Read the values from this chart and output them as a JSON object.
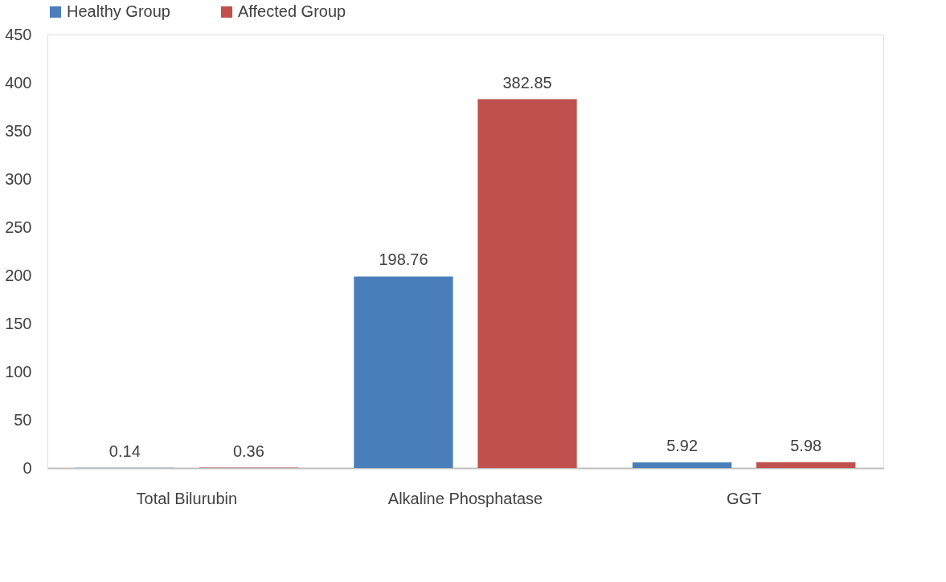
{
  "chart_data": {
    "type": "bar",
    "categories": [
      "Total Bilurubin",
      "Alkaline Phosphatase",
      "GGT"
    ],
    "series": [
      {
        "name": "Healthy Group",
        "color": "#4a7ebb",
        "values": [
          0.14,
          198.76,
          5.92
        ]
      },
      {
        "name": "Affected Group",
        "color": "#c0504d",
        "values": [
          0.36,
          382.85,
          5.98
        ]
      }
    ],
    "ylim": [
      0,
      450
    ],
    "yticks": [
      0,
      50,
      100,
      150,
      200,
      250,
      300,
      350,
      400,
      450
    ],
    "grid": false,
    "legend": "top",
    "data_labels": true
  }
}
